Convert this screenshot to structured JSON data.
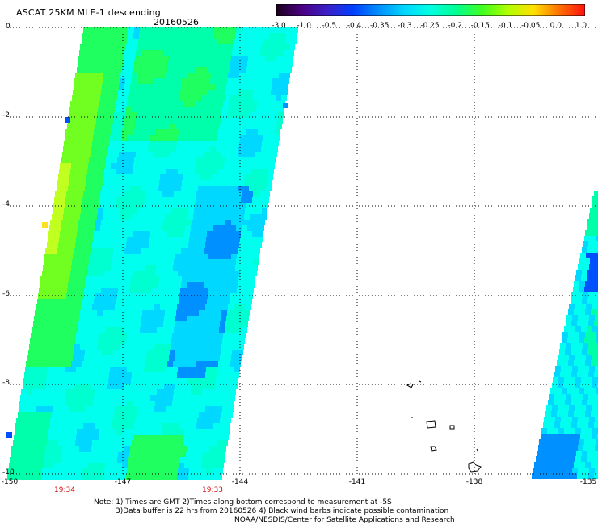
{
  "header": {
    "title": "ASCAT 25KM MLE-1 descending",
    "date": "20160526"
  },
  "colorbar": {
    "labels": [
      "-3.0",
      "-1.0",
      "-0.5",
      "-0.4",
      "-0.35",
      "-0.3",
      "-0.25",
      "-0.2",
      "-0.15",
      "-0.1",
      "-0.05",
      "0.0",
      "1.0"
    ],
    "colors": [
      "#1a001a",
      "#4b0082",
      "#3a20c8",
      "#0040ff",
      "#0090ff",
      "#00d8ff",
      "#00ffe0",
      "#00ff90",
      "#40ff20",
      "#b0ff00",
      "#ffe000",
      "#ff7000",
      "#ff1010"
    ]
  },
  "axes": {
    "y_labels": [
      "0",
      "-2",
      "-4",
      "-6",
      "-8",
      "-10"
    ],
    "x_labels": [
      "-150",
      "-147",
      "-144",
      "-141",
      "-138",
      "-135"
    ]
  },
  "times": [
    "19:34",
    "19:33"
  ],
  "notes": {
    "line1": "Note: 1) Times are GMT 2)Times along bottom correspond to measurement at -5S",
    "line2": "3)Data buffer is 22 hrs from 20160526 4) Black wind barbs indicate possible contamination",
    "line3": "NOAA/NESDIS/Center for Satellite Applications and Research"
  },
  "swath_colors": {
    "cyan": "#00ffee",
    "aqua": "#00ffd0",
    "mint": "#00ffaa",
    "green": "#20ff60",
    "lime": "#70ff20",
    "yellowgreen": "#c0ff20",
    "yellow": "#ffe020",
    "skyblue": "#00d8ff",
    "blue": "#0090ff",
    "deepblue": "#0050ff"
  }
}
